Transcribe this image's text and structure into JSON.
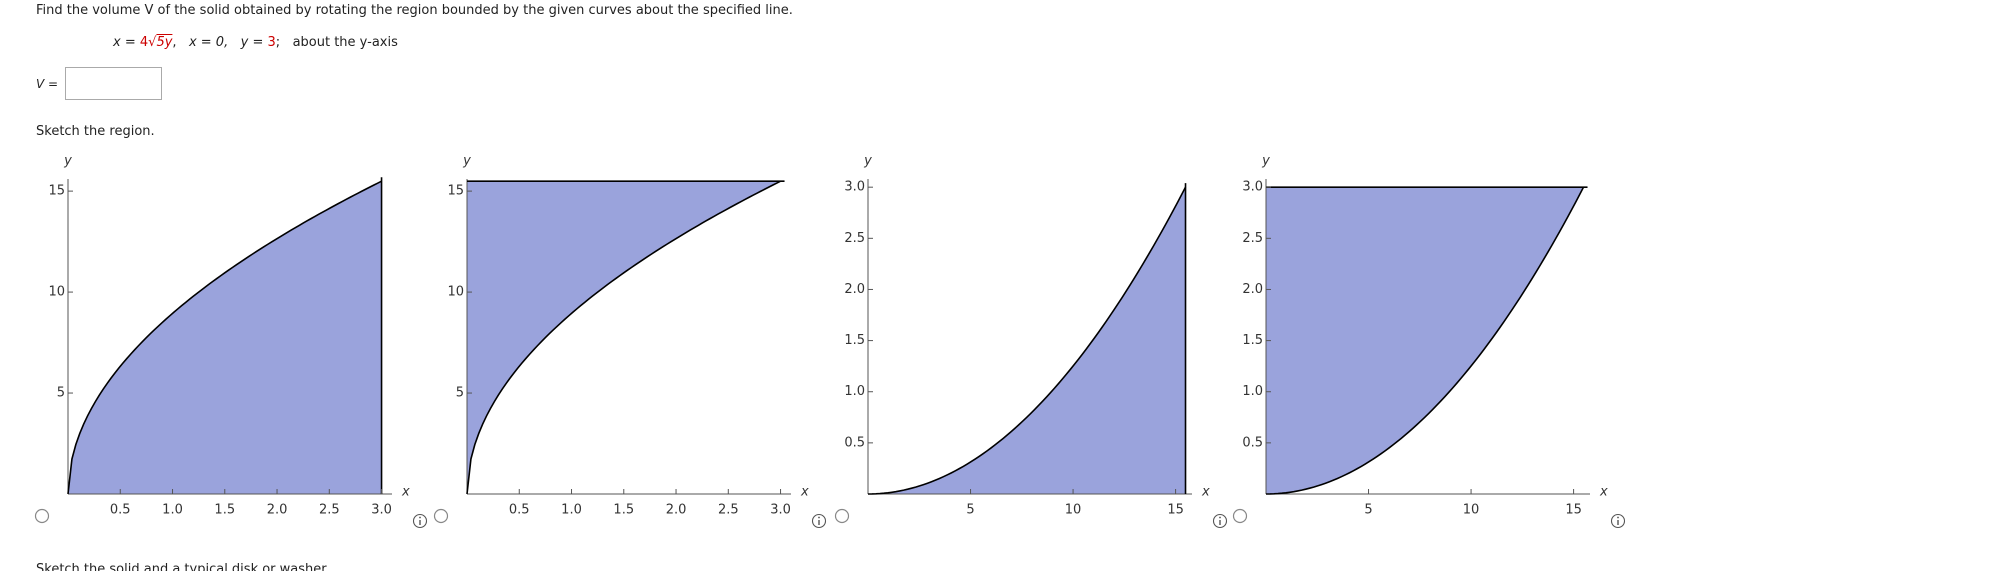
{
  "question": {
    "prompt": "Find the volume V of the solid obtained by rotating the region bounded by the given curves about the specified line.",
    "equation": {
      "lhs": "x =",
      "coef": "4",
      "radical": "√",
      "radicand": "5y",
      "sep1": ",",
      "second": "x = 0,",
      "third": "y =",
      "third_value": "3",
      "sep2": ";",
      "axis": "about the y-axis"
    },
    "answer_label": "V =",
    "sketch_prompt": "Sketch the region.",
    "next_prompt": "Sketch the solid and a typical disk or washer."
  },
  "options": [
    {
      "x_label": "x",
      "y_label": "y",
      "xlim": [
        0,
        3.1
      ],
      "ylim": [
        0,
        15.6
      ],
      "xticks": [
        0.5,
        {
          "value": 1,
          "label": "1.0"
        },
        1.5,
        {
          "value": 2,
          "label": "2.0"
        },
        2.5,
        {
          "value": 3,
          "label": "3.0"
        }
      ],
      "yticks": [
        5,
        10,
        15
      ]
    },
    {
      "x_label": "x",
      "y_label": "y",
      "xlim": [
        0,
        3.1
      ],
      "ylim": [
        0,
        15.6
      ],
      "xticks": [
        0.5,
        {
          "value": 1,
          "label": "1.0"
        },
        1.5,
        {
          "value": 2,
          "label": "2.0"
        },
        2.5,
        {
          "value": 3,
          "label": "3.0"
        }
      ],
      "yticks": [
        5,
        10,
        15
      ]
    },
    {
      "x_label": "x",
      "y_label": "y",
      "xlim": [
        0,
        15.8
      ],
      "ylim": [
        0,
        3.08
      ],
      "xticks": [
        5,
        10,
        15
      ],
      "yticks": [
        0.5,
        {
          "value": 1,
          "label": "1.0"
        },
        1.5,
        {
          "value": 2,
          "label": "2.0"
        },
        2.5,
        {
          "value": 3,
          "label": "3.0"
        }
      ]
    },
    {
      "x_label": "x",
      "y_label": "y",
      "xlim": [
        0,
        15.8
      ],
      "ylim": [
        0,
        3.08
      ],
      "xticks": [
        5,
        10,
        15
      ],
      "yticks": [
        0.5,
        {
          "value": 1,
          "label": "1.0"
        },
        1.5,
        {
          "value": 2,
          "label": "2.0"
        },
        2.5,
        {
          "value": 3,
          "label": "3.0"
        }
      ]
    }
  ]
}
